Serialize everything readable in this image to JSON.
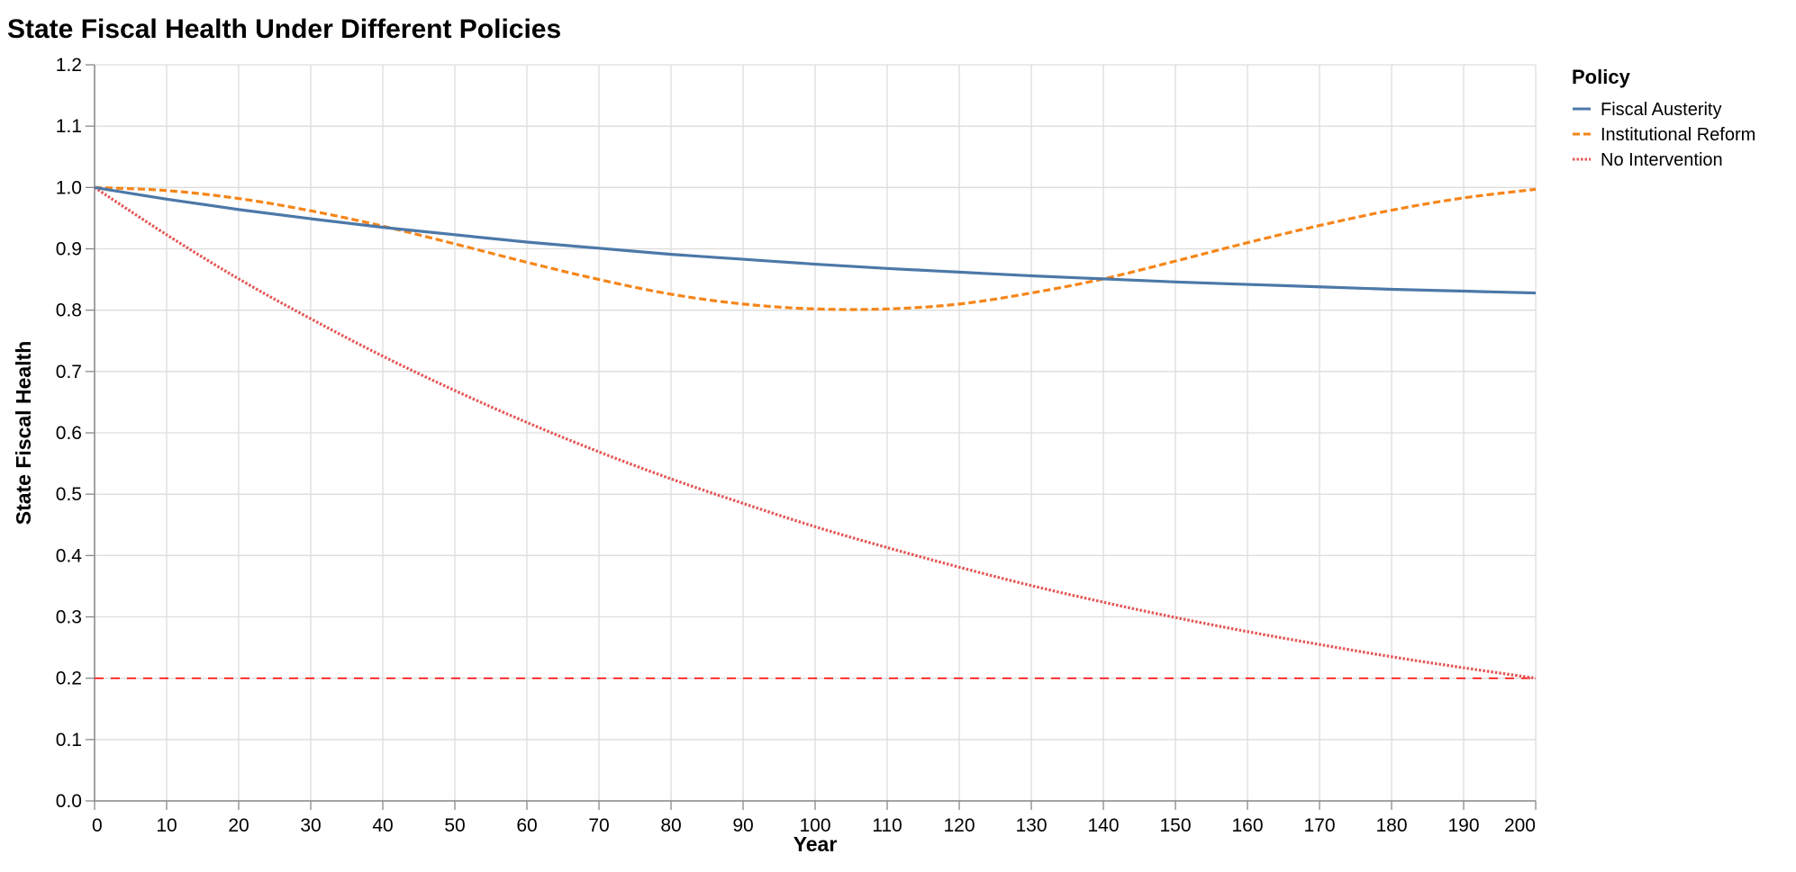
{
  "chart_data": {
    "type": "line",
    "title": "State Fiscal Health Under Different Policies",
    "xlabel": "Year",
    "ylabel": "State Fiscal Health",
    "xlim": [
      0,
      200
    ],
    "ylim": [
      0,
      1.2
    ],
    "x_ticks": [
      0,
      10,
      20,
      30,
      40,
      50,
      60,
      70,
      80,
      90,
      100,
      110,
      120,
      130,
      140,
      150,
      160,
      170,
      180,
      190,
      200
    ],
    "y_ticks": [
      "0.0",
      "0.1",
      "0.2",
      "0.3",
      "0.4",
      "0.5",
      "0.6",
      "0.7",
      "0.8",
      "0.9",
      "1.0",
      "1.1",
      "1.2"
    ],
    "grid": true,
    "legend": {
      "title": "Policy",
      "placement": "right"
    },
    "x": [
      0,
      10,
      20,
      30,
      40,
      50,
      60,
      70,
      80,
      90,
      100,
      110,
      120,
      130,
      140,
      150,
      160,
      170,
      180,
      190,
      200
    ],
    "series": [
      {
        "name": "Fiscal Austerity",
        "color": "#4c78a8",
        "dash": "solid",
        "values": [
          1.0,
          0.981,
          0.964,
          0.949,
          0.935,
          0.923,
          0.911,
          0.901,
          0.891,
          0.883,
          0.875,
          0.868,
          0.862,
          0.856,
          0.851,
          0.846,
          0.842,
          0.838,
          0.834,
          0.831,
          0.828
        ]
      },
      {
        "name": "Institutional Reform",
        "color": "#f58518",
        "dash": "dashed",
        "values": [
          1.0,
          0.995,
          0.982,
          0.962,
          0.937,
          0.908,
          0.878,
          0.85,
          0.826,
          0.81,
          0.802,
          0.802,
          0.81,
          0.828,
          0.851,
          0.88,
          0.91,
          0.938,
          0.963,
          0.983,
          0.997
        ]
      },
      {
        "name": "No Intervention",
        "color": "#e45756",
        "dash": "dotted",
        "values": [
          1.0,
          0.923,
          0.851,
          0.786,
          0.725,
          0.669,
          0.617,
          0.569,
          0.525,
          0.485,
          0.447,
          0.413,
          0.381,
          0.351,
          0.324,
          0.299,
          0.276,
          0.255,
          0.235,
          0.217,
          0.2
        ]
      }
    ],
    "reference_line": {
      "y": 0.2,
      "color": "#ff0000",
      "dash": "dashed"
    }
  }
}
